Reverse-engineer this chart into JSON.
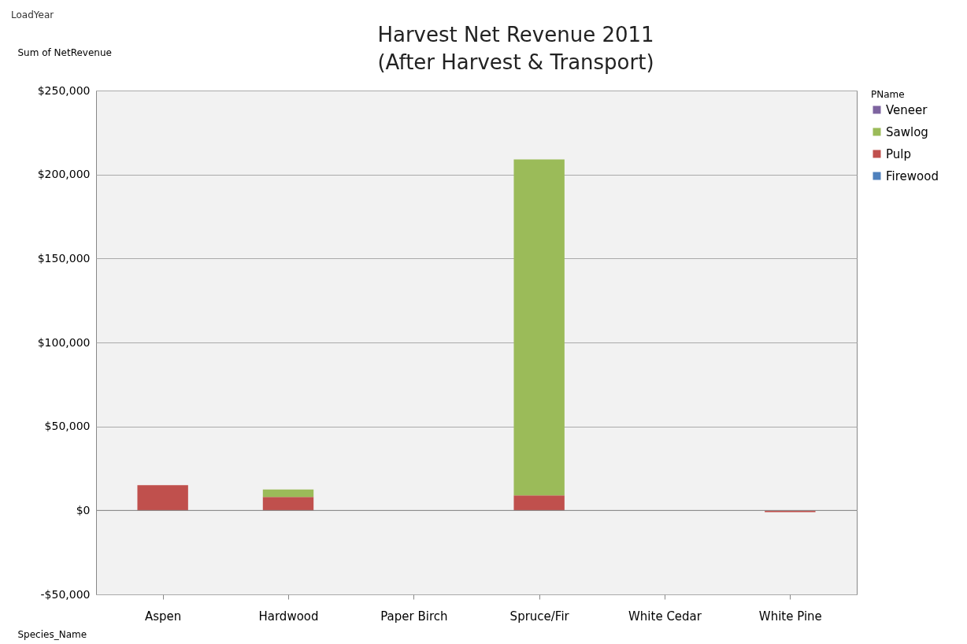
{
  "chart_data": {
    "type": "bar",
    "title": [
      "Harvest Net Revenue 2011",
      "(After Harvest & Transport)"
    ],
    "categories": [
      "Aspen",
      "Hardwood",
      "Paper Birch",
      "Spruce/Fir",
      "White Cedar",
      "White Pine"
    ],
    "stacked": true,
    "series": [
      {
        "name": "Firewood",
        "color": "#4f81bd",
        "values": [
          null,
          null,
          null,
          null,
          null,
          null
        ]
      },
      {
        "name": "Pulp",
        "color": "#c0504d",
        "values": [
          15000,
          8000,
          null,
          9000,
          null,
          -1000
        ]
      },
      {
        "name": "Sawlog",
        "color": "#9bbb59",
        "values": [
          null,
          4500,
          null,
          200000,
          null,
          null
        ]
      },
      {
        "name": "Veneer",
        "color": "#7e64a0",
        "values": [
          null,
          null,
          null,
          null,
          null,
          null
        ]
      }
    ],
    "ylim": [
      -50000,
      250000
    ],
    "yticks": [
      {
        "value": -50000,
        "label": "-$50,000"
      },
      {
        "value": 0,
        "label": "$0"
      },
      {
        "value": 50000,
        "label": "$50,000"
      },
      {
        "value": 100000,
        "label": "$100,000"
      },
      {
        "value": 150000,
        "label": "$150,000"
      },
      {
        "value": 200000,
        "label": "$200,000"
      },
      {
        "value": 250000,
        "label": "$250,000"
      }
    ],
    "ylabel": "Sum of NetRevenue",
    "xlabel": "Species_Name",
    "legend_title": "PName",
    "annotations": [
      "LoadYear"
    ],
    "grid": "y",
    "legend": "right"
  }
}
